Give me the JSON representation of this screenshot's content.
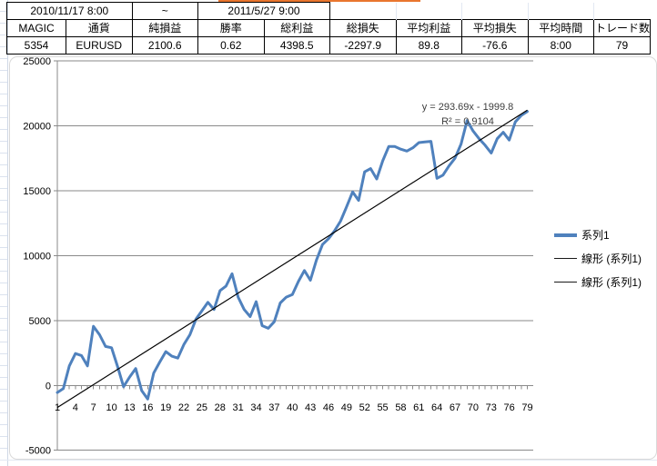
{
  "ui": {
    "selection_marker_color": "#e9762e"
  },
  "summary_table": {
    "period_start": "2010/11/17 8:00",
    "period_separator": "~",
    "period_end": "2011/5/27 9:00",
    "headers": [
      "MAGIC",
      "通貨",
      "純損益",
      "勝率",
      "総利益",
      "総損失",
      "平均利益",
      "平均損失",
      "平均時間",
      "トレード数"
    ],
    "values": [
      "5354",
      "EURUSD",
      "2100.6",
      "0.62",
      "4398.5",
      "-2297.9",
      "89.8",
      "-76.6",
      "8:00",
      "79"
    ]
  },
  "chart_data": {
    "type": "line",
    "xlabel": "",
    "ylabel": "",
    "ylim": [
      -5000,
      25000
    ],
    "yticks": [
      25000,
      20000,
      15000,
      10000,
      5000,
      0,
      -5000
    ],
    "xtick_labels": [
      1,
      4,
      7,
      10,
      13,
      16,
      19,
      22,
      25,
      28,
      31,
      34,
      37,
      40,
      43,
      46,
      49,
      52,
      55,
      58,
      61,
      64,
      67,
      70,
      73,
      76,
      79
    ],
    "grid": true,
    "legend_position": "right",
    "legend_items": [
      "系列1",
      "線形 (系列1)",
      "線形 (系列1)"
    ],
    "series": [
      {
        "name": "系列1",
        "values": [
          -550,
          -250,
          1500,
          2450,
          2300,
          1500,
          4550,
          3900,
          3000,
          2900,
          1450,
          -100,
          650,
          1300,
          -400,
          -1050,
          950,
          1800,
          2600,
          2250,
          2100,
          3150,
          3900,
          5100,
          5750,
          6400,
          5850,
          7300,
          7650,
          8600,
          6800,
          5850,
          5300,
          6450,
          4600,
          4400,
          4900,
          6350,
          6800,
          7000,
          8000,
          8850,
          8100,
          9650,
          10850,
          11300,
          11900,
          12650,
          13750,
          14900,
          14250,
          16450,
          16700,
          15900,
          17300,
          18400,
          18400,
          18200,
          18050,
          18300,
          18700,
          18750,
          18800,
          15950,
          16200,
          16900,
          17500,
          18600,
          20400,
          19600,
          19000,
          18500,
          17900,
          19000,
          19500,
          18900,
          20300,
          20800,
          21100
        ]
      }
    ],
    "trendline": {
      "name": "線形 (系列1)",
      "slope": 293.69,
      "intercept": -1999.8,
      "equation": "y = 293.69x - 1999.8",
      "r_squared": "R² = 0.9104"
    },
    "colors": {
      "series": "#4f81bd",
      "trendline": "#000000",
      "gridline": "#8a8a8a",
      "axis": "#8a8a8a"
    }
  }
}
